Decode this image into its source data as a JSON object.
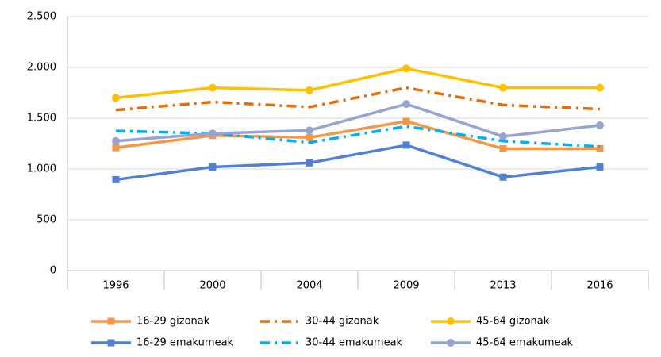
{
  "chart_data": {
    "type": "line",
    "categories": [
      "1996",
      "2000",
      "2004",
      "2009",
      "2013",
      "2016"
    ],
    "ylim": [
      0,
      2500
    ],
    "yticks": [
      0,
      500,
      {
        "value": 1000,
        "label": "1.000"
      },
      {
        "value": 1500,
        "label": "1.500"
      },
      {
        "value": 2000,
        "label": "2.000"
      },
      {
        "value": 2500,
        "label": "2.500"
      }
    ],
    "grid": true,
    "legend": "bottom",
    "series": [
      {
        "name": "16-29 gizonak",
        "color": "#f79646",
        "marker": "square",
        "dash": false,
        "values": [
          1210,
          1330,
          1310,
          1470,
          1200,
          1200
        ]
      },
      {
        "name": "30-44 gizonak",
        "color": "#e36c09",
        "marker": null,
        "dash": true,
        "values": [
          1580,
          1660,
          1610,
          1800,
          1630,
          1590
        ]
      },
      {
        "name": "45-64 gizonak",
        "color": "#ffc000",
        "marker": "circle",
        "dash": false,
        "values": [
          1700,
          1800,
          1775,
          1990,
          1800,
          1800
        ]
      },
      {
        "name": "16-29 emakumeak",
        "color": "#4f81d4",
        "marker": "square",
        "dash": false,
        "values": [
          895,
          1020,
          1060,
          1235,
          920,
          1020
        ]
      },
      {
        "name": "30-44 emakumeak",
        "color": "#00b0f0",
        "marker": null,
        "dash": true,
        "values": [
          1375,
          1350,
          1260,
          1420,
          1275,
          1220
        ]
      },
      {
        "name": "45-64 emakumeak",
        "color": "#95a5d0",
        "marker": "circle",
        "dash": false,
        "values": [
          1275,
          1350,
          1380,
          1640,
          1320,
          1430
        ]
      }
    ]
  }
}
